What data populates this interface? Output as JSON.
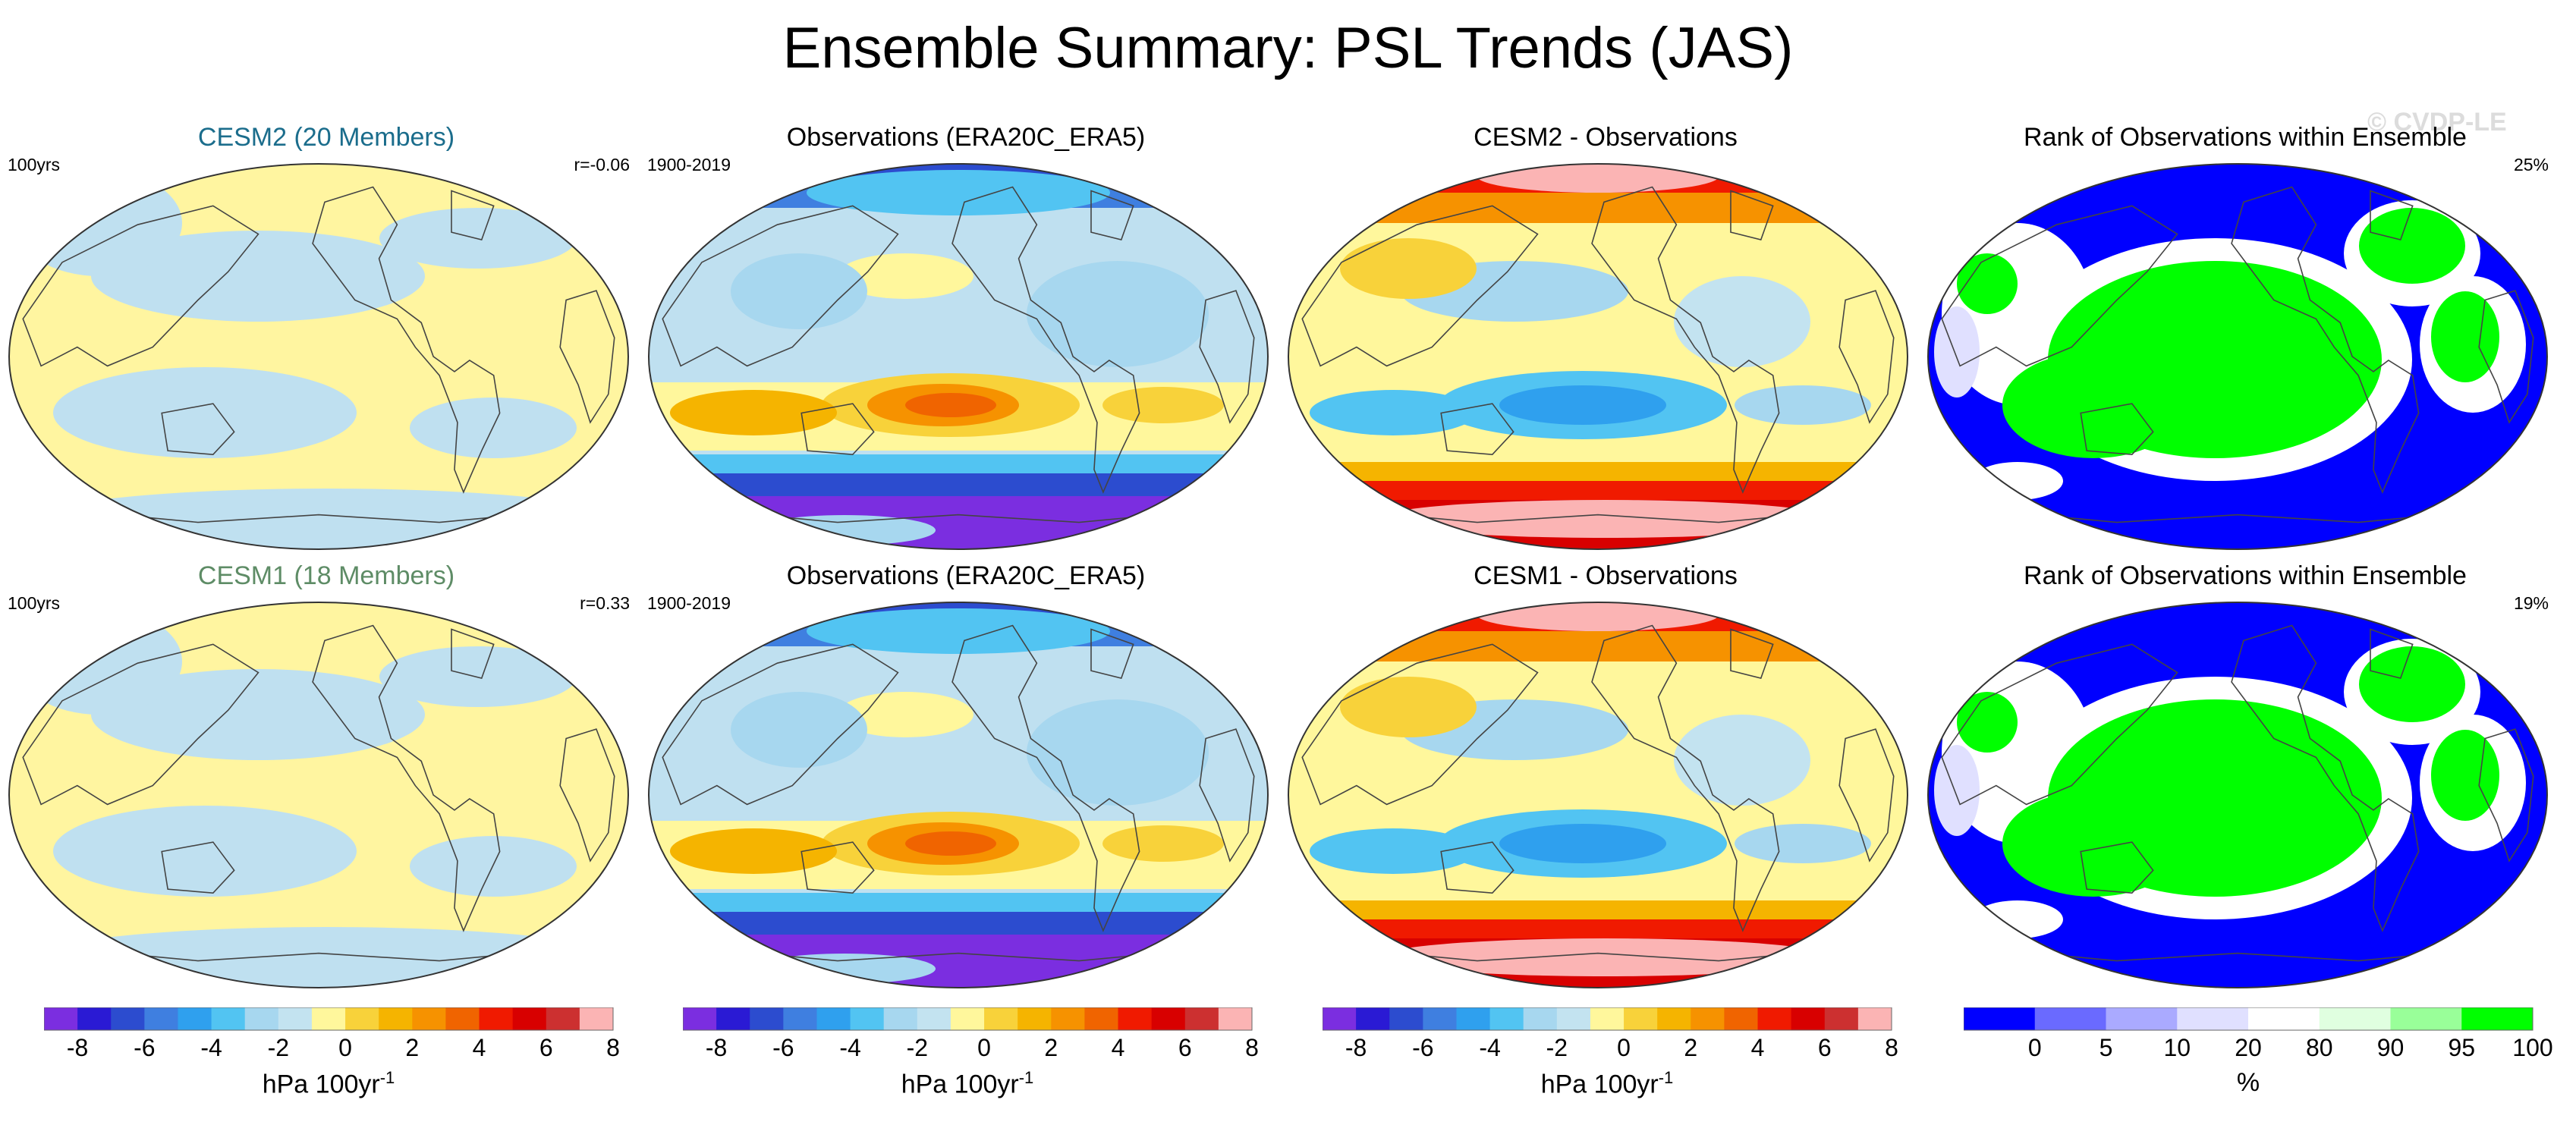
{
  "title": "Ensemble Summary: PSL Trends (JAS)",
  "watermark": "© CVDP-LE",
  "colors": {
    "ensemble_title_cesm2": "#1b6d8c",
    "ensemble_title_cesm1": "#5e8c66"
  },
  "panels": [
    {
      "id": "r1c1",
      "title": "CESM2 (20 Members)",
      "left_corner": "100yrs",
      "right_corner": "r=-0.06",
      "kind": "model"
    },
    {
      "id": "r1c2",
      "title": "Observations (ERA20C_ERA5)",
      "left_corner": "1900-2019",
      "right_corner": "",
      "kind": "obs"
    },
    {
      "id": "r1c3",
      "title": "CESM2 - Observations",
      "left_corner": "",
      "right_corner": "",
      "kind": "diff"
    },
    {
      "id": "r1c4",
      "title": "Rank of Observations within Ensemble",
      "left_corner": "",
      "right_corner": "25%",
      "kind": "rank"
    },
    {
      "id": "r2c1",
      "title": "CESM1 (18 Members)",
      "left_corner": "100yrs",
      "right_corner": "r=0.33",
      "kind": "model"
    },
    {
      "id": "r2c2",
      "title": "Observations (ERA20C_ERA5)",
      "left_corner": "1900-2019",
      "right_corner": "",
      "kind": "obs"
    },
    {
      "id": "r2c3",
      "title": "CESM1 - Observations",
      "left_corner": "",
      "right_corner": "",
      "kind": "diff"
    },
    {
      "id": "r2c4",
      "title": "Rank of Observations within Ensemble",
      "left_corner": "",
      "right_corner": "19%",
      "kind": "rank"
    }
  ],
  "chart_data": [
    {
      "type": "colorbar",
      "label_main": "hPa 100yr",
      "label_sup": "-1",
      "ticks": [
        "-8",
        "-6",
        "-4",
        "-2",
        "0",
        "2",
        "4",
        "6",
        "8"
      ],
      "colors": [
        "#7b2ee0",
        "#2a1ad4",
        "#2c4ccf",
        "#3f7fe0",
        "#2fa0ee",
        "#52c4f2",
        "#a7d7ef",
        "#c3e3f0",
        "#fff79c",
        "#f8d23a",
        "#f5b400",
        "#f69200",
        "#f06400",
        "#f01a00",
        "#d80000",
        "#cc3030",
        "#fbb4b4"
      ]
    },
    {
      "type": "colorbar",
      "label_main": "hPa 100yr",
      "label_sup": "-1",
      "ticks": [
        "-8",
        "-6",
        "-4",
        "-2",
        "0",
        "2",
        "4",
        "6",
        "8"
      ],
      "colors": [
        "#7b2ee0",
        "#2a1ad4",
        "#2c4ccf",
        "#3f7fe0",
        "#2fa0ee",
        "#52c4f2",
        "#a7d7ef",
        "#c3e3f0",
        "#fff79c",
        "#f8d23a",
        "#f5b400",
        "#f69200",
        "#f06400",
        "#f01a00",
        "#d80000",
        "#cc3030",
        "#fbb4b4"
      ]
    },
    {
      "type": "colorbar",
      "label_main": "hPa 100yr",
      "label_sup": "-1",
      "ticks": [
        "-8",
        "-6",
        "-4",
        "-2",
        "0",
        "2",
        "4",
        "6",
        "8"
      ],
      "colors": [
        "#7b2ee0",
        "#2a1ad4",
        "#2c4ccf",
        "#3f7fe0",
        "#2fa0ee",
        "#52c4f2",
        "#a7d7ef",
        "#c3e3f0",
        "#fff79c",
        "#f8d23a",
        "#f5b400",
        "#f69200",
        "#f06400",
        "#f01a00",
        "#d80000",
        "#cc3030",
        "#fbb4b4"
      ]
    },
    {
      "type": "colorbar",
      "label_main": "%",
      "label_sup": "",
      "ticks": [
        "0",
        "5",
        "10",
        "20",
        "80",
        "90",
        "95",
        "100"
      ],
      "colors": [
        "#0000ff",
        "#6a6aff",
        "#aaaaff",
        "#e0e0ff",
        "#ffffff",
        "#e0ffe0",
        "#99ff99",
        "#00ff00"
      ]
    }
  ]
}
